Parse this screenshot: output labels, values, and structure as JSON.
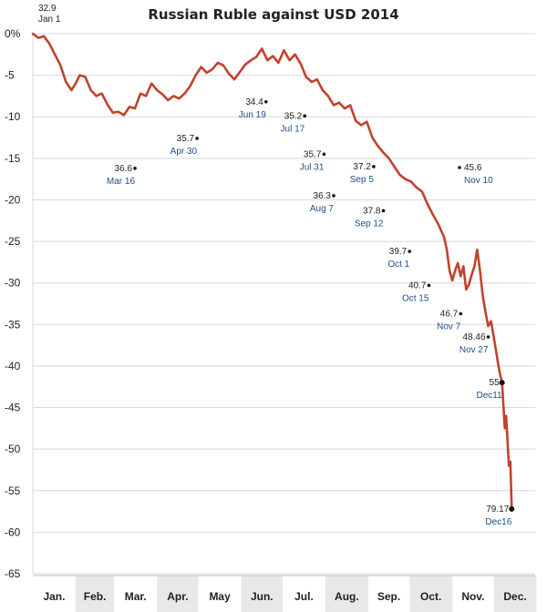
{
  "chart_data": {
    "type": "line",
    "title": "Russian Ruble against USD 2014",
    "xlabel": "",
    "ylabel": "",
    "ylim": [
      -65,
      0
    ],
    "y_ticks": [
      0,
      -5,
      -10,
      -15,
      -20,
      -25,
      -30,
      -35,
      -40,
      -45,
      -50,
      -55,
      -60,
      -65
    ],
    "y_tick_labels": [
      "0%",
      "-5",
      "-10",
      "-15",
      "-20",
      "-25",
      "-30",
      "-35",
      "-40",
      "-45",
      "-50",
      "-55",
      "-60",
      "-65"
    ],
    "x_tick_labels": [
      "Jan.",
      "Feb.",
      "Mar.",
      "Apr.",
      "May",
      "Jun.",
      "Jul.",
      "Aug.",
      "Sep.",
      "Oct.",
      "Nov.",
      "Dec."
    ],
    "grid": true,
    "colors": {
      "line": "#c0432c",
      "date_text": "#1d4f86",
      "grid": "#d8d8d8",
      "band": "#e8e8e8"
    },
    "series": [
      {
        "name": "",
        "points": [
          [
            0,
            0
          ],
          [
            4,
            -0.5
          ],
          [
            8,
            -0.3
          ],
          [
            12,
            -1.2
          ],
          [
            16,
            -2.5
          ],
          [
            20,
            -3.8
          ],
          [
            24,
            -5.8
          ],
          [
            28,
            -6.8
          ],
          [
            31,
            -6.0
          ],
          [
            34,
            -5.0
          ],
          [
            38,
            -5.2
          ],
          [
            42,
            -6.8
          ],
          [
            46,
            -7.5
          ],
          [
            50,
            -7.2
          ],
          [
            54,
            -8.5
          ],
          [
            58,
            -9.5
          ],
          [
            62,
            -9.4
          ],
          [
            66,
            -9.8
          ],
          [
            70,
            -8.8
          ],
          [
            74,
            -9.0
          ],
          [
            78,
            -7.2
          ],
          [
            82,
            -7.5
          ],
          [
            86,
            -6.0
          ],
          [
            90,
            -6.8
          ],
          [
            94,
            -7.3
          ],
          [
            98,
            -8.0
          ],
          [
            102,
            -7.5
          ],
          [
            106,
            -7.8
          ],
          [
            110,
            -7.2
          ],
          [
            114,
            -6.3
          ],
          [
            118,
            -5.0
          ],
          [
            122,
            -4.0
          ],
          [
            126,
            -4.7
          ],
          [
            130,
            -4.3
          ],
          [
            134,
            -3.5
          ],
          [
            138,
            -3.8
          ],
          [
            142,
            -4.8
          ],
          [
            146,
            -5.5
          ],
          [
            150,
            -4.6
          ],
          [
            154,
            -3.7
          ],
          [
            158,
            -3.2
          ],
          [
            162,
            -2.8
          ],
          [
            166,
            -1.8
          ],
          [
            170,
            -3.2
          ],
          [
            174,
            -2.7
          ],
          [
            178,
            -3.5
          ],
          [
            182,
            -2.0
          ],
          [
            186,
            -3.2
          ],
          [
            190,
            -2.5
          ],
          [
            194,
            -3.6
          ],
          [
            198,
            -5.2
          ],
          [
            202,
            -5.8
          ],
          [
            206,
            -5.5
          ],
          [
            210,
            -6.8
          ],
          [
            214,
            -7.5
          ],
          [
            218,
            -8.6
          ],
          [
            222,
            -8.3
          ],
          [
            226,
            -9.0
          ],
          [
            230,
            -8.6
          ],
          [
            234,
            -10.5
          ],
          [
            238,
            -11.0
          ],
          [
            242,
            -10.6
          ],
          [
            246,
            -12.5
          ],
          [
            250,
            -13.5
          ],
          [
            254,
            -14.3
          ],
          [
            258,
            -15.0
          ],
          [
            262,
            -16.0
          ],
          [
            266,
            -17.0
          ],
          [
            270,
            -17.5
          ],
          [
            274,
            -17.8
          ],
          [
            278,
            -18.5
          ],
          [
            282,
            -19.0
          ],
          [
            286,
            -20.5
          ],
          [
            290,
            -21.8
          ],
          [
            294,
            -23.0
          ],
          [
            298,
            -24.5
          ],
          [
            300,
            -26.0
          ],
          [
            302,
            -28.5
          ],
          [
            304,
            -29.7
          ],
          [
            306,
            -28.5
          ],
          [
            308,
            -27.6
          ],
          [
            310,
            -29.2
          ],
          [
            312,
            -28.0
          ],
          [
            314,
            -30.8
          ],
          [
            316,
            -30.2
          ],
          [
            318,
            -29.0
          ],
          [
            320,
            -28.0
          ],
          [
            322,
            -26.0
          ],
          [
            324,
            -28.5
          ],
          [
            326,
            -31.5
          ],
          [
            328,
            -33.5
          ],
          [
            330,
            -35.2
          ],
          [
            332,
            -34.6
          ],
          [
            334,
            -36.5
          ],
          [
            336,
            -38.5
          ],
          [
            338,
            -40.5
          ],
          [
            340,
            -42.0
          ],
          [
            342,
            -47.5
          ],
          [
            343,
            -46.0
          ],
          [
            344,
            -49.0
          ],
          [
            345,
            -52.0
          ],
          [
            346,
            -51.5
          ],
          [
            347,
            -57.2
          ]
        ]
      }
    ],
    "annotations": [
      {
        "x": 0,
        "y": 0,
        "value": "32.9",
        "date": "Jan 1"
      },
      {
        "x": 74,
        "y": -16.2,
        "value": "36.6",
        "date": "Mar 16"
      },
      {
        "x": 119,
        "y": -12.6,
        "value": "35.7",
        "date": "Apr 30"
      },
      {
        "x": 169,
        "y": -8.2,
        "value": "34.4",
        "date": "Jun 19"
      },
      {
        "x": 197,
        "y": -9.9,
        "value": "35.2",
        "date": "Jul 17"
      },
      {
        "x": 211,
        "y": -14.5,
        "value": "35.7",
        "date": "Jul 31"
      },
      {
        "x": 218,
        "y": -19.5,
        "value": "36.3",
        "date": "Aug 7"
      },
      {
        "x": 247,
        "y": -16.0,
        "value": "37.2",
        "date": "Sep 5"
      },
      {
        "x": 254,
        "y": -21.3,
        "value": "37.8",
        "date": "Sep 12"
      },
      {
        "x": 273,
        "y": -26.2,
        "value": "39.7",
        "date": "Oct 1"
      },
      {
        "x": 287,
        "y": -30.3,
        "value": "40.7",
        "date": "Oct 15"
      },
      {
        "x": 310,
        "y": -18.5,
        "value": "45.6",
        "date": "Nov 10"
      },
      {
        "x": 310,
        "y": -33.7,
        "value": "46.7",
        "date": "Nov 7"
      },
      {
        "x": 330,
        "y": -36.5,
        "value": "48.46",
        "date": "Nov 27"
      },
      {
        "x": 340,
        "y": -42.0,
        "value": "55",
        "date": "Dec11"
      },
      {
        "x": 347,
        "y": -57.2,
        "value": "79.17",
        "date": "Dec16"
      }
    ]
  }
}
